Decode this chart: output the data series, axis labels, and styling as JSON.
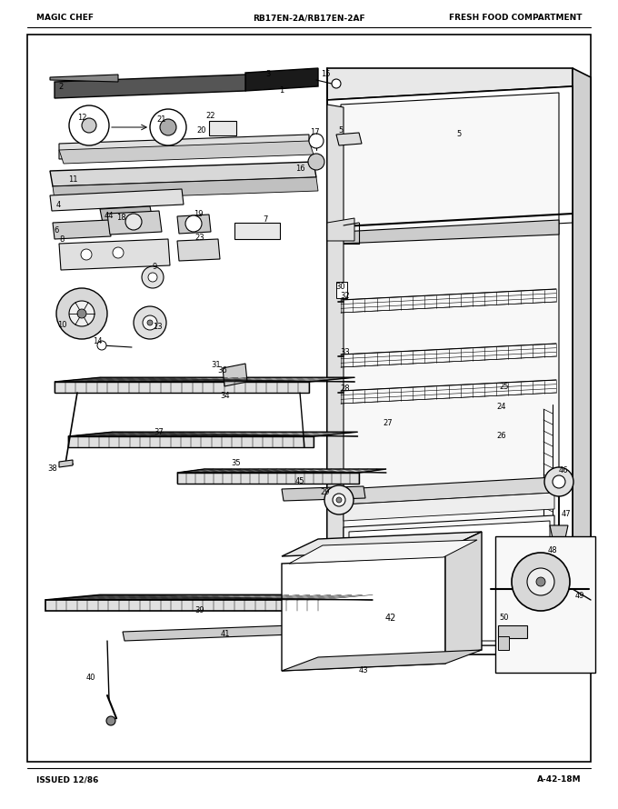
{
  "title_left": "MAGIC CHEF",
  "title_center": "RB17EN-2A/RB17EN-2AF",
  "title_right": "FRESH FOOD COMPARTMENT",
  "footer_left": "ISSUED 12/86",
  "footer_right": "A-42-18M",
  "bg_color": "#ffffff",
  "border_color": "#000000",
  "text_color": "#000000",
  "figsize": [
    6.8,
    8.9
  ],
  "dpi": 100
}
